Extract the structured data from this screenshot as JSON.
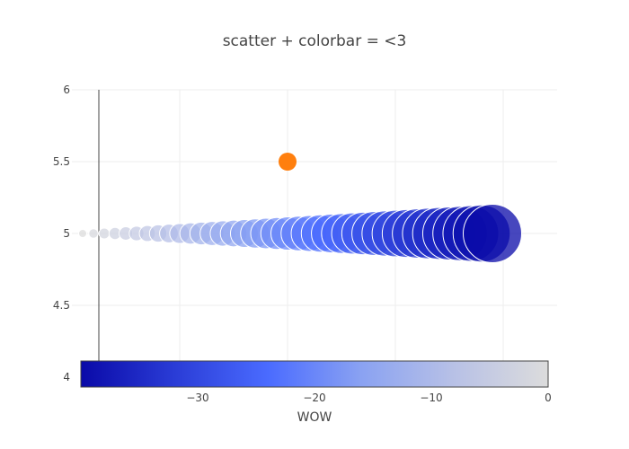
{
  "chart_data": {
    "type": "scatter",
    "title": "scatter + colorbar = <3",
    "xlabel": "",
    "ylabel": "",
    "ylim": [
      4,
      6
    ],
    "xlim": [
      -40,
      5
    ],
    "x_ticks": [
      "−30",
      "−20",
      "−10",
      "0"
    ],
    "y_ticks": [
      "4",
      "4.5",
      "5",
      "5.5",
      "6"
    ],
    "grid": true,
    "series": [
      {
        "x": [
          -39,
          -38,
          -37,
          -36,
          -35,
          -34,
          -33,
          -32,
          -31,
          -30,
          -29,
          -28,
          -27,
          -26,
          -25,
          -24,
          -23,
          -22,
          -21,
          -20,
          -19,
          -18,
          -17,
          -16,
          -15,
          -14,
          -13,
          -12,
          -11,
          -10,
          -9,
          -8,
          -7,
          -6,
          -5,
          -4,
          -3,
          -2,
          -1
        ],
        "y": [
          5,
          5,
          5,
          5,
          5,
          5,
          5,
          5,
          5,
          5,
          5,
          5,
          5,
          5,
          5,
          5,
          5,
          5,
          5,
          5,
          5,
          5,
          5,
          5,
          5,
          5,
          5,
          5,
          5,
          5,
          5,
          5,
          5,
          5,
          5,
          5,
          5,
          5,
          5
        ],
        "marker": {
          "color": "colorscale-by-x",
          "size": "increasing"
        }
      },
      {
        "x": [
          -20
        ],
        "y": [
          5.5
        ],
        "marker": {
          "color": "#ff7f0e"
        }
      }
    ],
    "colorbar": {
      "title": "WOW",
      "range": [
        -40,
        0
      ],
      "ticks": [
        "−30",
        "−20",
        "−10",
        "0"
      ],
      "orientation": "horizontal",
      "colorscale": [
        "#0a0aa8",
        "#2a3cd6",
        "#4a6bff",
        "#8aa2f2",
        "#b8c1e6",
        "#dcdcdc"
      ]
    }
  }
}
